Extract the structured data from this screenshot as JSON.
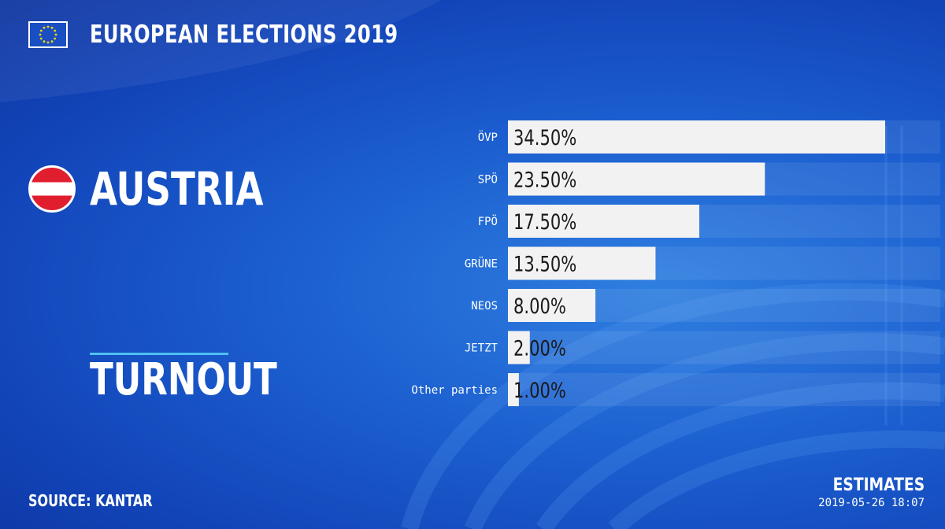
{
  "header": {
    "title": "EUROPEAN ELECTIONS 2019",
    "flag_icon": "eu-flag-icon"
  },
  "country": {
    "name": "AUSTRIA",
    "flag_icon": "austria-flag-icon"
  },
  "section": {
    "turnout_label": "TURNOUT"
  },
  "footer": {
    "source": "SOURCE: KANTAR",
    "estimates_label": "ESTIMATES",
    "timestamp": "2019-05-26 18:07"
  },
  "colors": {
    "background": "#1c5fd0",
    "bar": "#f2f2f2",
    "bar_text": "#1a1a1a",
    "accent_line": "#4ec0f0"
  },
  "chart_data": {
    "type": "bar",
    "orientation": "horizontal",
    "categories": [
      "ÖVP",
      "SPÖ",
      "FPÖ",
      "GRÜNE",
      "NEOS",
      "JETZT",
      "Other parties"
    ],
    "values": [
      34.5,
      23.5,
      17.5,
      13.5,
      8.0,
      2.0,
      1.0
    ],
    "value_labels": [
      "34.50%",
      "23.50%",
      "17.50%",
      "13.50%",
      "8.00%",
      "2.00%",
      "1.00%"
    ],
    "xlim": [
      0,
      34.5
    ]
  }
}
